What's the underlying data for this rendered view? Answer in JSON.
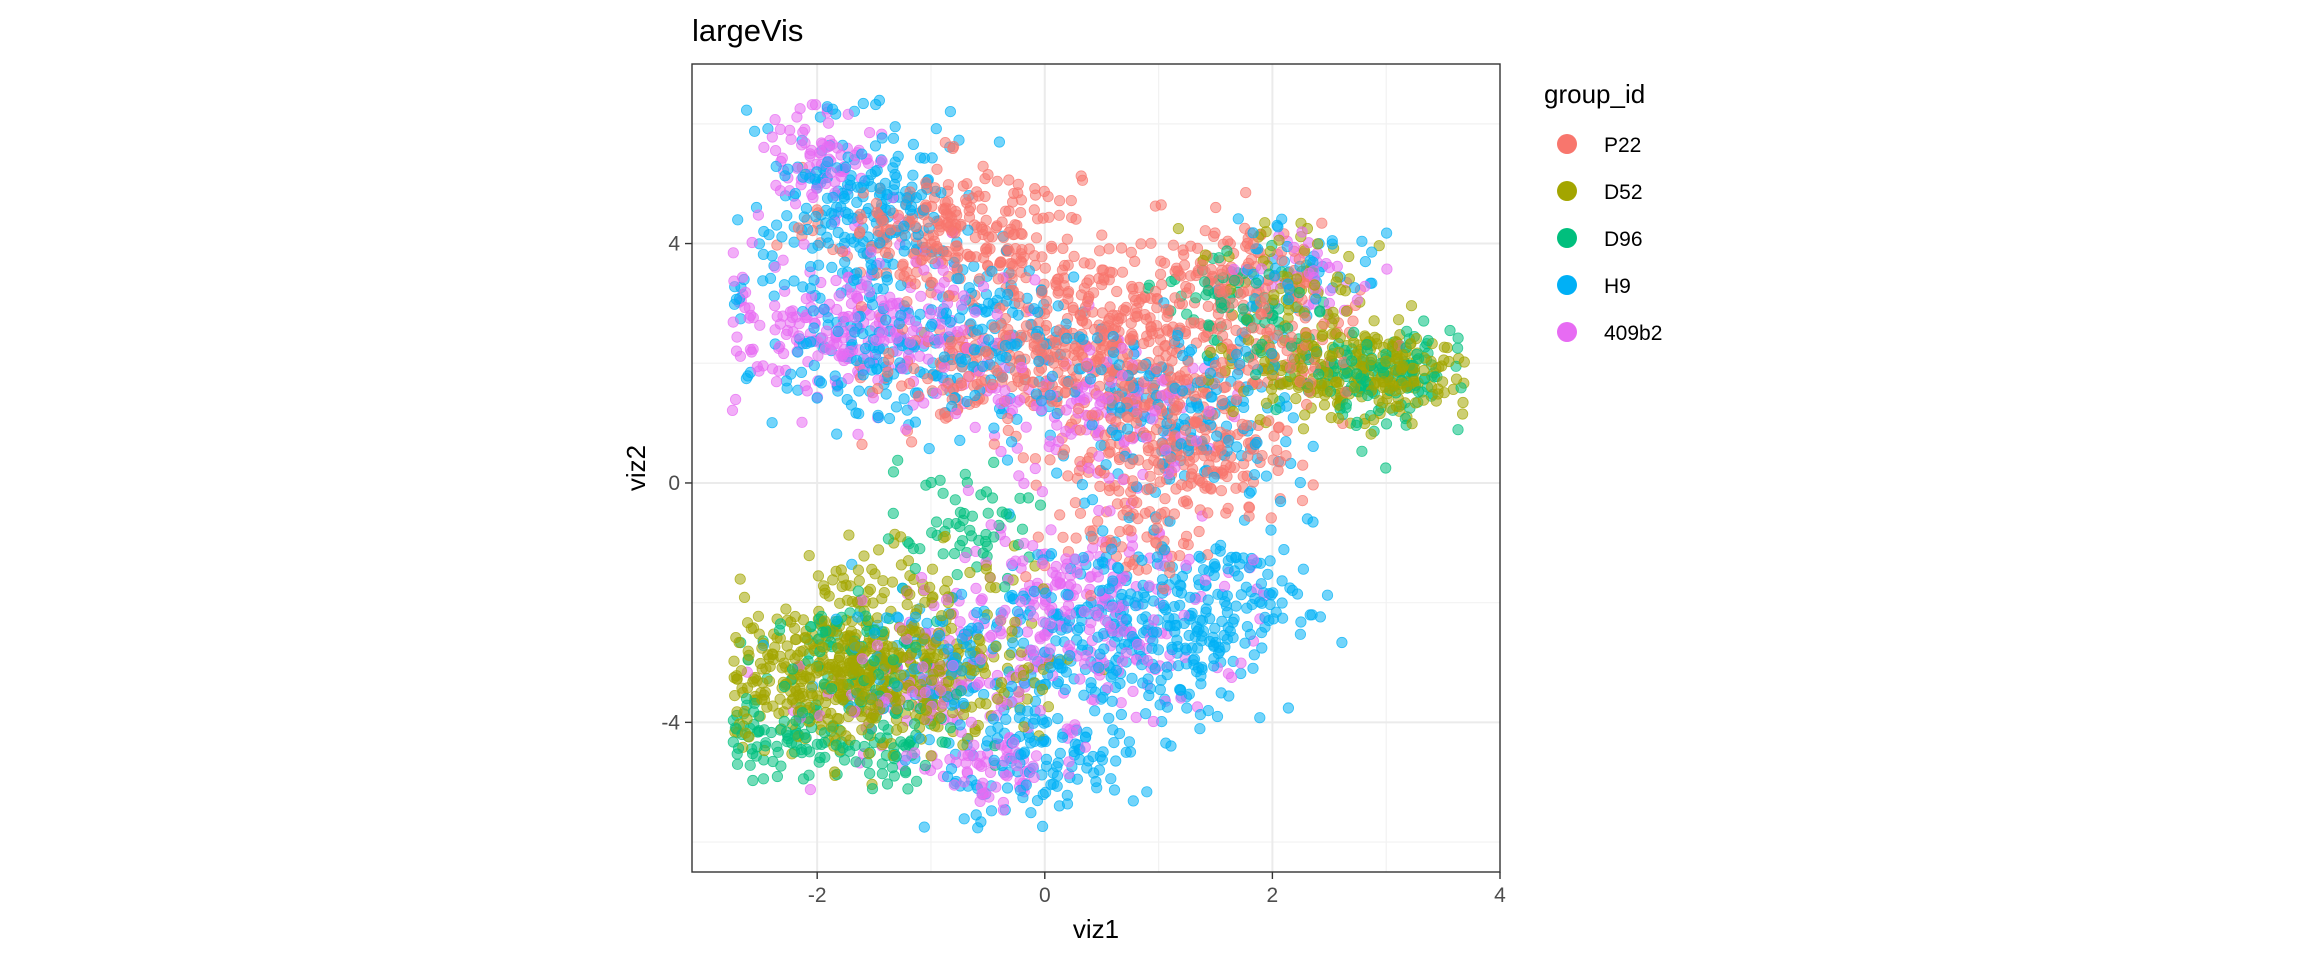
{
  "chart_data": {
    "type": "scatter",
    "title": "largeVis",
    "xlabel": "viz1",
    "ylabel": "viz2",
    "xlim": [
      -3.1,
      4.0
    ],
    "ylim": [
      -6.5,
      7.0
    ],
    "x_ticks": [
      -2,
      0,
      2,
      4
    ],
    "y_ticks": [
      -4,
      0,
      4
    ],
    "x_tick_labels": [
      "-2",
      "0",
      "2",
      "4"
    ],
    "y_tick_labels": [
      "-4",
      "0",
      "4"
    ],
    "grid": true,
    "legend_title": "group_id",
    "legend_position": "right",
    "point_alpha": 0.55,
    "series": [
      {
        "name": "P22",
        "color": "#F8766D",
        "clusters": [
          {
            "cx": -0.8,
            "cy": 4.2,
            "sx": 0.55,
            "sy": 0.55,
            "n": 260
          },
          {
            "cx": 0.5,
            "cy": 2.6,
            "sx": 0.55,
            "sy": 0.7,
            "n": 260
          },
          {
            "cx": 1.2,
            "cy": 0.8,
            "sx": 0.5,
            "sy": 0.7,
            "n": 300
          },
          {
            "cx": 1.6,
            "cy": 3.3,
            "sx": 0.45,
            "sy": 0.55,
            "n": 150
          },
          {
            "cx": -0.4,
            "cy": 1.9,
            "sx": 0.55,
            "sy": 0.55,
            "n": 170
          },
          {
            "cx": 0.7,
            "cy": -0.8,
            "sx": 0.35,
            "sy": 0.45,
            "n": 60
          },
          {
            "cx": 2.2,
            "cy": 2.3,
            "sx": 0.35,
            "sy": 0.4,
            "n": 70
          }
        ]
      },
      {
        "name": "D52",
        "color": "#A3A500",
        "clusters": [
          {
            "cx": -1.8,
            "cy": -3.2,
            "sx": 0.5,
            "sy": 0.6,
            "n": 430
          },
          {
            "cx": -0.9,
            "cy": -3.2,
            "sx": 0.5,
            "sy": 0.5,
            "n": 170
          },
          {
            "cx": 2.6,
            "cy": 1.9,
            "sx": 0.5,
            "sy": 0.4,
            "n": 200
          },
          {
            "cx": 2.2,
            "cy": 3.4,
            "sx": 0.35,
            "sy": 0.45,
            "n": 60
          },
          {
            "cx": -1.2,
            "cy": -1.6,
            "sx": 0.5,
            "sy": 0.4,
            "n": 60
          },
          {
            "cx": 3.1,
            "cy": 1.7,
            "sx": 0.3,
            "sy": 0.35,
            "n": 80
          }
        ]
      },
      {
        "name": "D96",
        "color": "#00BF7D",
        "clusters": [
          {
            "cx": -2.3,
            "cy": -4.2,
            "sx": 0.3,
            "sy": 0.35,
            "n": 80
          },
          {
            "cx": -1.4,
            "cy": -4.4,
            "sx": 0.35,
            "sy": 0.4,
            "n": 70
          },
          {
            "cx": 2.9,
            "cy": 1.8,
            "sx": 0.4,
            "sy": 0.4,
            "n": 150
          },
          {
            "cx": 1.7,
            "cy": 3.0,
            "sx": 0.35,
            "sy": 0.4,
            "n": 70
          },
          {
            "cx": -0.6,
            "cy": -0.8,
            "sx": 0.4,
            "sy": 0.45,
            "n": 60
          },
          {
            "cx": -1.7,
            "cy": -2.8,
            "sx": 0.4,
            "sy": 0.5,
            "n": 80
          }
        ]
      },
      {
        "name": "H9",
        "color": "#00B0F6",
        "clusters": [
          {
            "cx": -1.6,
            "cy": 4.6,
            "sx": 0.4,
            "sy": 0.8,
            "n": 230
          },
          {
            "cx": -1.0,
            "cy": 2.4,
            "sx": 0.75,
            "sy": 0.7,
            "n": 300
          },
          {
            "cx": 0.9,
            "cy": -2.4,
            "sx": 0.55,
            "sy": 0.8,
            "n": 330
          },
          {
            "cx": 0.0,
            "cy": -4.6,
            "sx": 0.45,
            "sy": 0.5,
            "n": 130
          },
          {
            "cx": 1.2,
            "cy": 1.2,
            "sx": 0.55,
            "sy": 0.7,
            "n": 200
          },
          {
            "cx": -0.7,
            "cy": -3.0,
            "sx": 0.55,
            "sy": 0.6,
            "n": 130
          },
          {
            "cx": 1.8,
            "cy": -1.8,
            "sx": 0.3,
            "sy": 0.5,
            "n": 60
          },
          {
            "cx": 2.2,
            "cy": 3.6,
            "sx": 0.35,
            "sy": 0.4,
            "n": 50
          }
        ]
      },
      {
        "name": "409b2",
        "color": "#E76BF3",
        "clusters": [
          {
            "cx": -1.9,
            "cy": 5.4,
            "sx": 0.25,
            "sy": 0.5,
            "n": 90
          },
          {
            "cx": -1.6,
            "cy": 2.6,
            "sx": 0.6,
            "sy": 0.6,
            "n": 260
          },
          {
            "cx": 0.3,
            "cy": -2.2,
            "sx": 0.65,
            "sy": 0.8,
            "n": 280
          },
          {
            "cx": -0.4,
            "cy": -4.8,
            "sx": 0.35,
            "sy": 0.4,
            "n": 70
          },
          {
            "cx": 0.4,
            "cy": 1.2,
            "sx": 0.6,
            "sy": 0.6,
            "n": 140
          },
          {
            "cx": -1.0,
            "cy": -3.4,
            "sx": 0.5,
            "sy": 0.5,
            "n": 100
          },
          {
            "cx": 2.3,
            "cy": 3.4,
            "sx": 0.3,
            "sy": 0.4,
            "n": 40
          }
        ]
      }
    ]
  }
}
